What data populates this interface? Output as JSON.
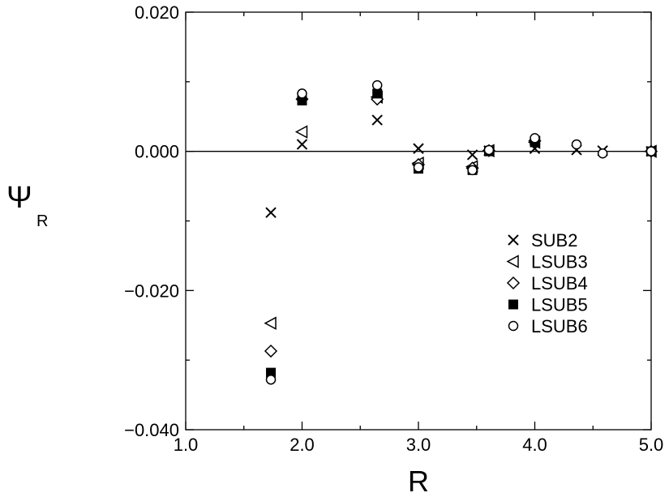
{
  "chart_data": {
    "type": "scatter",
    "xlabel": "R",
    "ylabel": "Ψ",
    "ylabel_subscript": "R",
    "xlim": [
      1.0,
      5.0
    ],
    "ylim": [
      -0.04,
      0.02
    ],
    "x_ticks": [
      "1.0",
      "2.0",
      "3.0",
      "4.0",
      "5.0"
    ],
    "y_ticks": [
      "0.020",
      "0.000",
      "−0.020",
      "−0.040"
    ],
    "zero_line": true,
    "grid": false,
    "legend_position": "right-middle",
    "series": [
      {
        "name": "SUB2",
        "marker": "x",
        "points": [
          [
            1.732,
            -0.0088
          ],
          [
            2.0,
            0.001
          ],
          [
            2.646,
            0.0045
          ],
          [
            3.0,
            0.0004
          ],
          [
            3.464,
            -0.0005
          ],
          [
            3.606,
            0.0001
          ],
          [
            4.0,
            0.0004
          ],
          [
            4.359,
            0.0002
          ],
          [
            4.583,
            0.0001
          ],
          [
            5.0,
            0.0
          ]
        ]
      },
      {
        "name": "LSUB3",
        "marker": "triangle-left",
        "points": [
          [
            1.732,
            -0.0247
          ],
          [
            2.0,
            0.0028
          ],
          [
            2.646,
            0.0078
          ],
          [
            3.0,
            -0.0017
          ],
          [
            3.464,
            -0.0022
          ],
          [
            3.606,
            0.0001
          ],
          [
            4.0,
            0.0013
          ],
          [
            5.0,
            0.0
          ]
        ]
      },
      {
        "name": "LSUB4",
        "marker": "diamond",
        "points": [
          [
            1.732,
            -0.0287
          ],
          [
            2.0,
            0.0075
          ],
          [
            2.646,
            0.0075
          ],
          [
            3.0,
            -0.0019
          ],
          [
            3.464,
            -0.0024
          ],
          [
            3.606,
            0.0001
          ],
          [
            4.0,
            0.0015
          ],
          [
            5.0,
            0.0
          ]
        ]
      },
      {
        "name": "LSUB5",
        "marker": "square-filled",
        "points": [
          [
            1.732,
            -0.0318
          ],
          [
            2.0,
            0.0073
          ],
          [
            2.646,
            0.0083
          ],
          [
            3.0,
            -0.0025
          ],
          [
            3.464,
            -0.0027
          ],
          [
            3.606,
            0.0
          ],
          [
            4.0,
            0.0013
          ],
          [
            5.0,
            0.0
          ]
        ]
      },
      {
        "name": "LSUB6",
        "marker": "circle",
        "points": [
          [
            1.732,
            -0.0328
          ],
          [
            2.0,
            0.0083
          ],
          [
            2.646,
            0.0095
          ],
          [
            3.0,
            -0.0023
          ],
          [
            3.464,
            -0.0027
          ],
          [
            3.606,
            0.0002
          ],
          [
            4.0,
            0.0019
          ],
          [
            4.359,
            0.001
          ],
          [
            4.583,
            -0.0003
          ],
          [
            5.0,
            0.0
          ]
        ]
      }
    ]
  }
}
